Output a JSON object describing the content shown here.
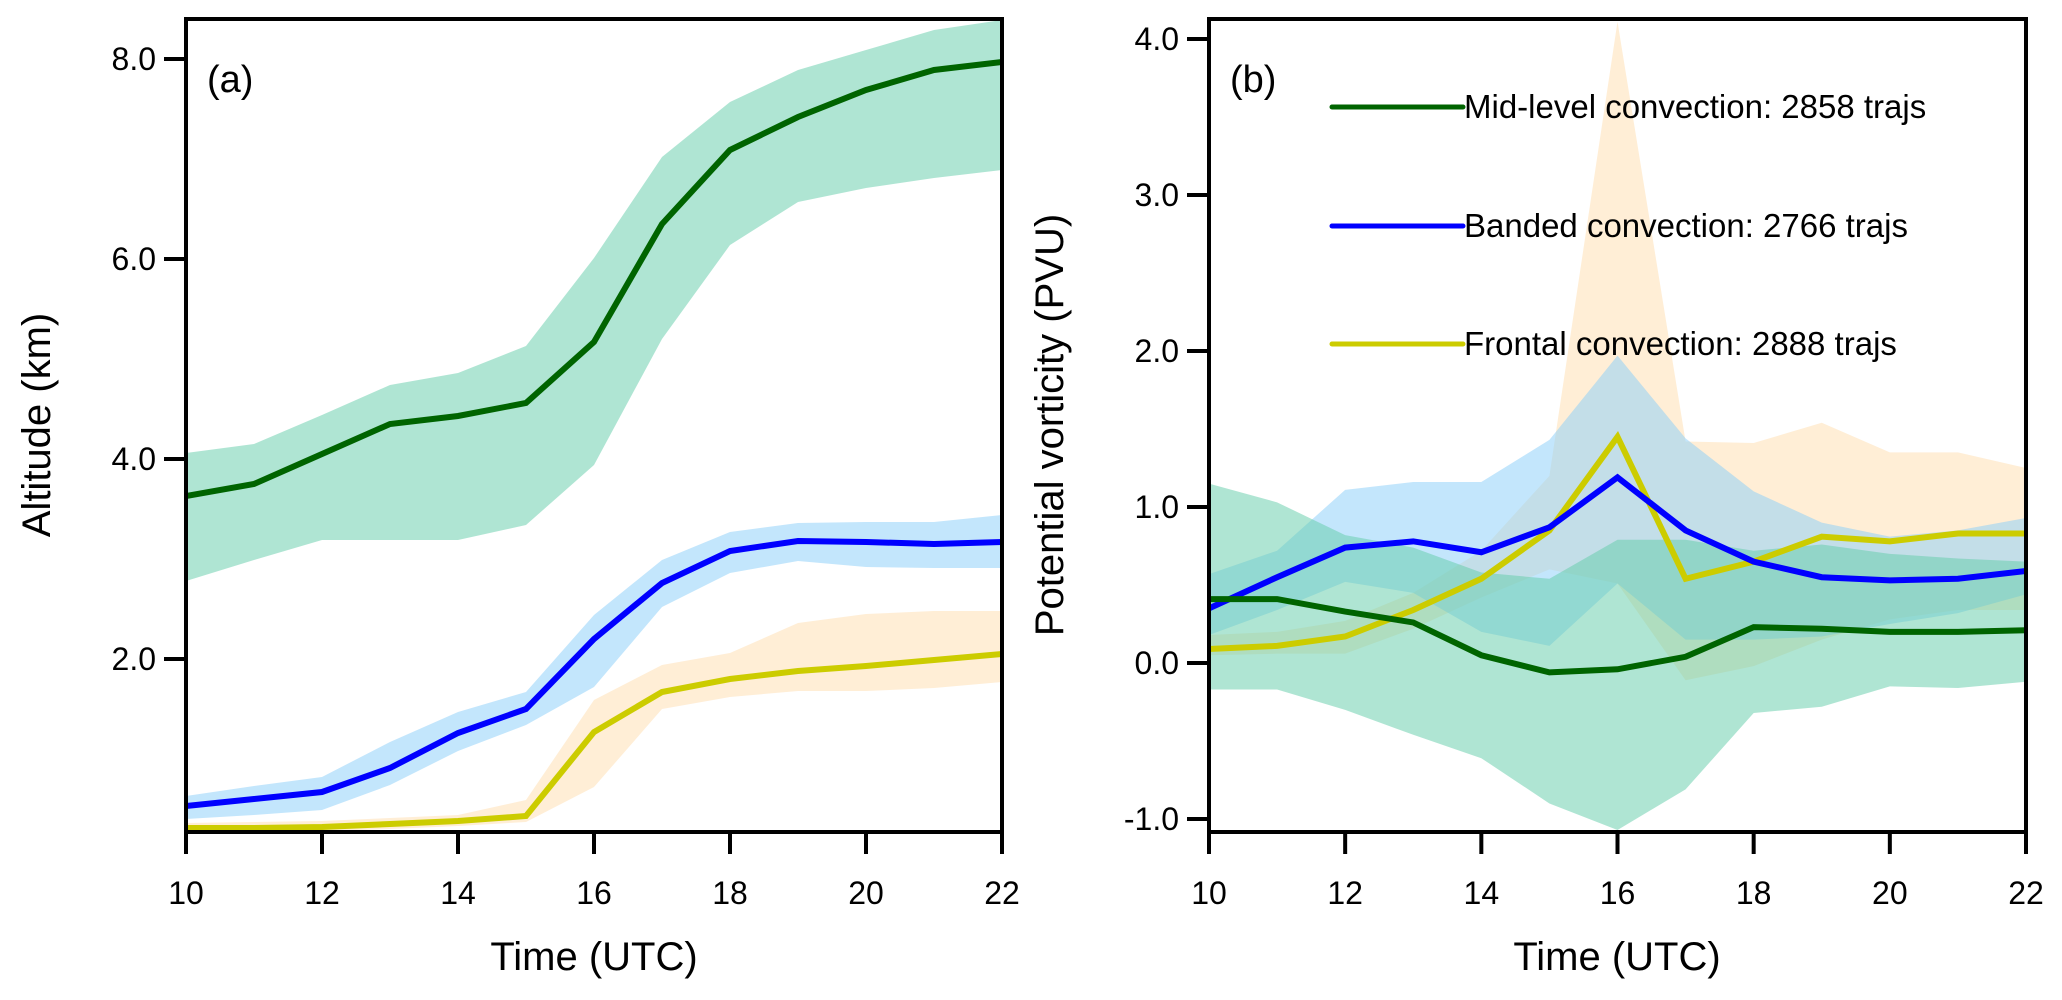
{
  "chart_data": [
    {
      "type": "line",
      "panel_label": "(a)",
      "xlabel": "Time (UTC)",
      "ylabel": "Altitude (km)",
      "x": [
        10,
        11,
        12,
        13,
        14,
        15,
        16,
        17,
        18,
        19,
        20,
        21,
        22
      ],
      "xlim": [
        10,
        22
      ],
      "ylim": [
        0.27,
        8.4
      ],
      "xticks": [
        10,
        12,
        14,
        16,
        18,
        20,
        22
      ],
      "xtick_labels": [
        "10",
        "12",
        "14",
        "16",
        "18",
        "20",
        "22"
      ],
      "yticks": [
        2.0,
        4.0,
        6.0,
        8.0
      ],
      "ytick_labels": [
        "2.0",
        "4.0",
        "6.0",
        "8.0"
      ],
      "grid": false,
      "series": [
        {
          "name": "Mid-level convection",
          "line_color": "#006400",
          "fill_color": "#66cdaa",
          "values": [
            3.63,
            3.75,
            4.05,
            4.35,
            4.43,
            4.56,
            5.17,
            6.35,
            7.09,
            7.42,
            7.69,
            7.89,
            7.97
          ],
          "upper": [
            4.06,
            4.15,
            4.44,
            4.74,
            4.86,
            5.13,
            6.01,
            7.02,
            7.57,
            7.89,
            8.09,
            8.29,
            8.39
          ],
          "lower": [
            2.78,
            2.99,
            3.19,
            3.19,
            3.19,
            3.34,
            3.94,
            5.2,
            6.14,
            6.57,
            6.71,
            6.81,
            6.89
          ]
        },
        {
          "name": "Banded convection",
          "line_color": "#0000ff",
          "fill_color": "#87cefa",
          "values": [
            0.53,
            0.6,
            0.67,
            0.91,
            1.26,
            1.5,
            2.2,
            2.76,
            3.08,
            3.18,
            3.17,
            3.15,
            3.17
          ],
          "upper": [
            0.63,
            0.73,
            0.82,
            1.17,
            1.47,
            1.67,
            2.44,
            2.99,
            3.27,
            3.36,
            3.37,
            3.37,
            3.44
          ],
          "lower": [
            0.4,
            0.44,
            0.49,
            0.74,
            1.08,
            1.34,
            1.72,
            2.52,
            2.86,
            2.98,
            2.92,
            2.91,
            2.91
          ]
        },
        {
          "name": "Frontal convection",
          "line_color": "#cccc00",
          "fill_color": "#ffdead",
          "values": [
            0.31,
            0.31,
            0.32,
            0.35,
            0.38,
            0.43,
            1.27,
            1.67,
            1.8,
            1.88,
            1.93,
            1.99,
            2.05
          ],
          "upper": [
            0.36,
            0.37,
            0.38,
            0.41,
            0.44,
            0.59,
            1.59,
            1.94,
            2.06,
            2.36,
            2.45,
            2.48,
            2.48
          ],
          "lower": [
            0.27,
            0.27,
            0.28,
            0.3,
            0.33,
            0.37,
            0.72,
            1.5,
            1.62,
            1.68,
            1.68,
            1.71,
            1.77
          ]
        }
      ]
    },
    {
      "type": "line",
      "panel_label": "(b)",
      "xlabel": "Time (UTC)",
      "ylabel": "Potential vorticity (PVU)",
      "x": [
        10,
        11,
        12,
        13,
        14,
        15,
        16,
        17,
        18,
        19,
        20,
        21,
        22
      ],
      "xlim": [
        10,
        22
      ],
      "ylim": [
        -1.083,
        4.128
      ],
      "xticks": [
        10,
        12,
        14,
        16,
        18,
        20,
        22
      ],
      "xtick_labels": [
        "10",
        "12",
        "14",
        "16",
        "18",
        "20",
        "22"
      ],
      "yticks": [
        -1.0,
        0.0,
        1.0,
        2.0,
        3.0,
        4.0
      ],
      "ytick_labels": [
        "-1.0",
        "0.0",
        "1.0",
        "2.0",
        "3.0",
        "4.0"
      ],
      "grid": false,
      "legend_position": "top-right",
      "legend": [
        {
          "label": "Mid-level convection: 2858 trajs",
          "color": "#006400"
        },
        {
          "label": "Banded convection: 2766 trajs",
          "color": "#0000ff"
        },
        {
          "label": "Frontal convection: 2888 trajs",
          "color": "#cccc00"
        }
      ],
      "series": [
        {
          "name": "Mid-level convection",
          "line_color": "#006400",
          "fill_color": "#66cdaa",
          "values": [
            0.41,
            0.41,
            0.33,
            0.26,
            0.05,
            -0.06,
            -0.04,
            0.04,
            0.23,
            0.22,
            0.2,
            0.2,
            0.21
          ],
          "upper": [
            1.15,
            1.03,
            0.82,
            0.74,
            0.58,
            0.54,
            0.79,
            0.79,
            0.72,
            0.76,
            0.7,
            0.67,
            0.65
          ],
          "lower": [
            -0.17,
            -0.17,
            -0.3,
            -0.46,
            -0.61,
            -0.9,
            -1.07,
            -0.81,
            -0.32,
            -0.28,
            -0.15,
            -0.16,
            -0.12
          ]
        },
        {
          "name": "Banded convection",
          "line_color": "#0000ff",
          "fill_color": "#87cefa",
          "values": [
            0.35,
            0.55,
            0.74,
            0.78,
            0.71,
            0.87,
            1.19,
            0.85,
            0.65,
            0.55,
            0.53,
            0.54,
            0.59
          ],
          "upper": [
            0.57,
            0.72,
            1.11,
            1.16,
            1.16,
            1.43,
            1.97,
            1.44,
            1.1,
            0.9,
            0.81,
            0.85,
            0.93
          ],
          "lower": [
            0.18,
            0.34,
            0.52,
            0.45,
            0.2,
            0.11,
            0.51,
            0.15,
            0.15,
            0.17,
            0.25,
            0.32,
            0.44
          ]
        },
        {
          "name": "Frontal convection",
          "line_color": "#cccc00",
          "fill_color": "#ffdead",
          "values": [
            0.09,
            0.11,
            0.17,
            0.34,
            0.54,
            0.85,
            1.45,
            0.54,
            0.65,
            0.81,
            0.78,
            0.83,
            0.83
          ],
          "upper": [
            0.18,
            0.2,
            0.27,
            0.45,
            0.72,
            1.2,
            4.11,
            1.42,
            1.41,
            1.54,
            1.35,
            1.35,
            1.25
          ],
          "lower": [
            0.05,
            0.06,
            0.06,
            0.22,
            0.42,
            0.6,
            0.51,
            -0.11,
            -0.02,
            0.15,
            0.28,
            0.34,
            0.34
          ]
        }
      ]
    }
  ]
}
